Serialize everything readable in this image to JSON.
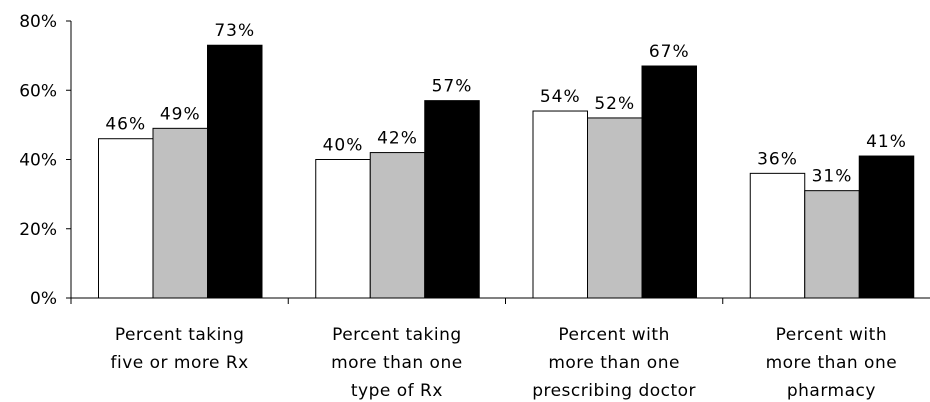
{
  "chart_data": {
    "type": "bar",
    "categories": [
      [
        "Percent taking",
        "five or more Rx"
      ],
      [
        "Percent taking",
        "more than one",
        "type of Rx"
      ],
      [
        "Percent with",
        "more than one",
        "prescribing doctor"
      ],
      [
        "Percent with",
        "more than one",
        "pharmacy"
      ]
    ],
    "series": [
      {
        "values": [
          46,
          40,
          54,
          36
        ],
        "labels": [
          "46%",
          "40%",
          "54%",
          "36%"
        ],
        "color": "#ffffff"
      },
      {
        "values": [
          49,
          42,
          52,
          31
        ],
        "labels": [
          "49%",
          "42%",
          "52%",
          "31%"
        ],
        "color": "#c0c0c0"
      },
      {
        "values": [
          73,
          57,
          67,
          41
        ],
        "labels": [
          "73%",
          "57%",
          "67%",
          "41%"
        ],
        "color": "#000000"
      }
    ],
    "ylim": [
      0,
      80
    ],
    "yticks": [
      {
        "value": 0,
        "label": "0%"
      },
      {
        "value": 20,
        "label": "20%"
      },
      {
        "value": 40,
        "label": "40%"
      },
      {
        "value": 60,
        "label": "60%"
      },
      {
        "value": 80,
        "label": "80%"
      }
    ],
    "grid": false,
    "legend": "none",
    "bar_outline_color": "#000000"
  }
}
